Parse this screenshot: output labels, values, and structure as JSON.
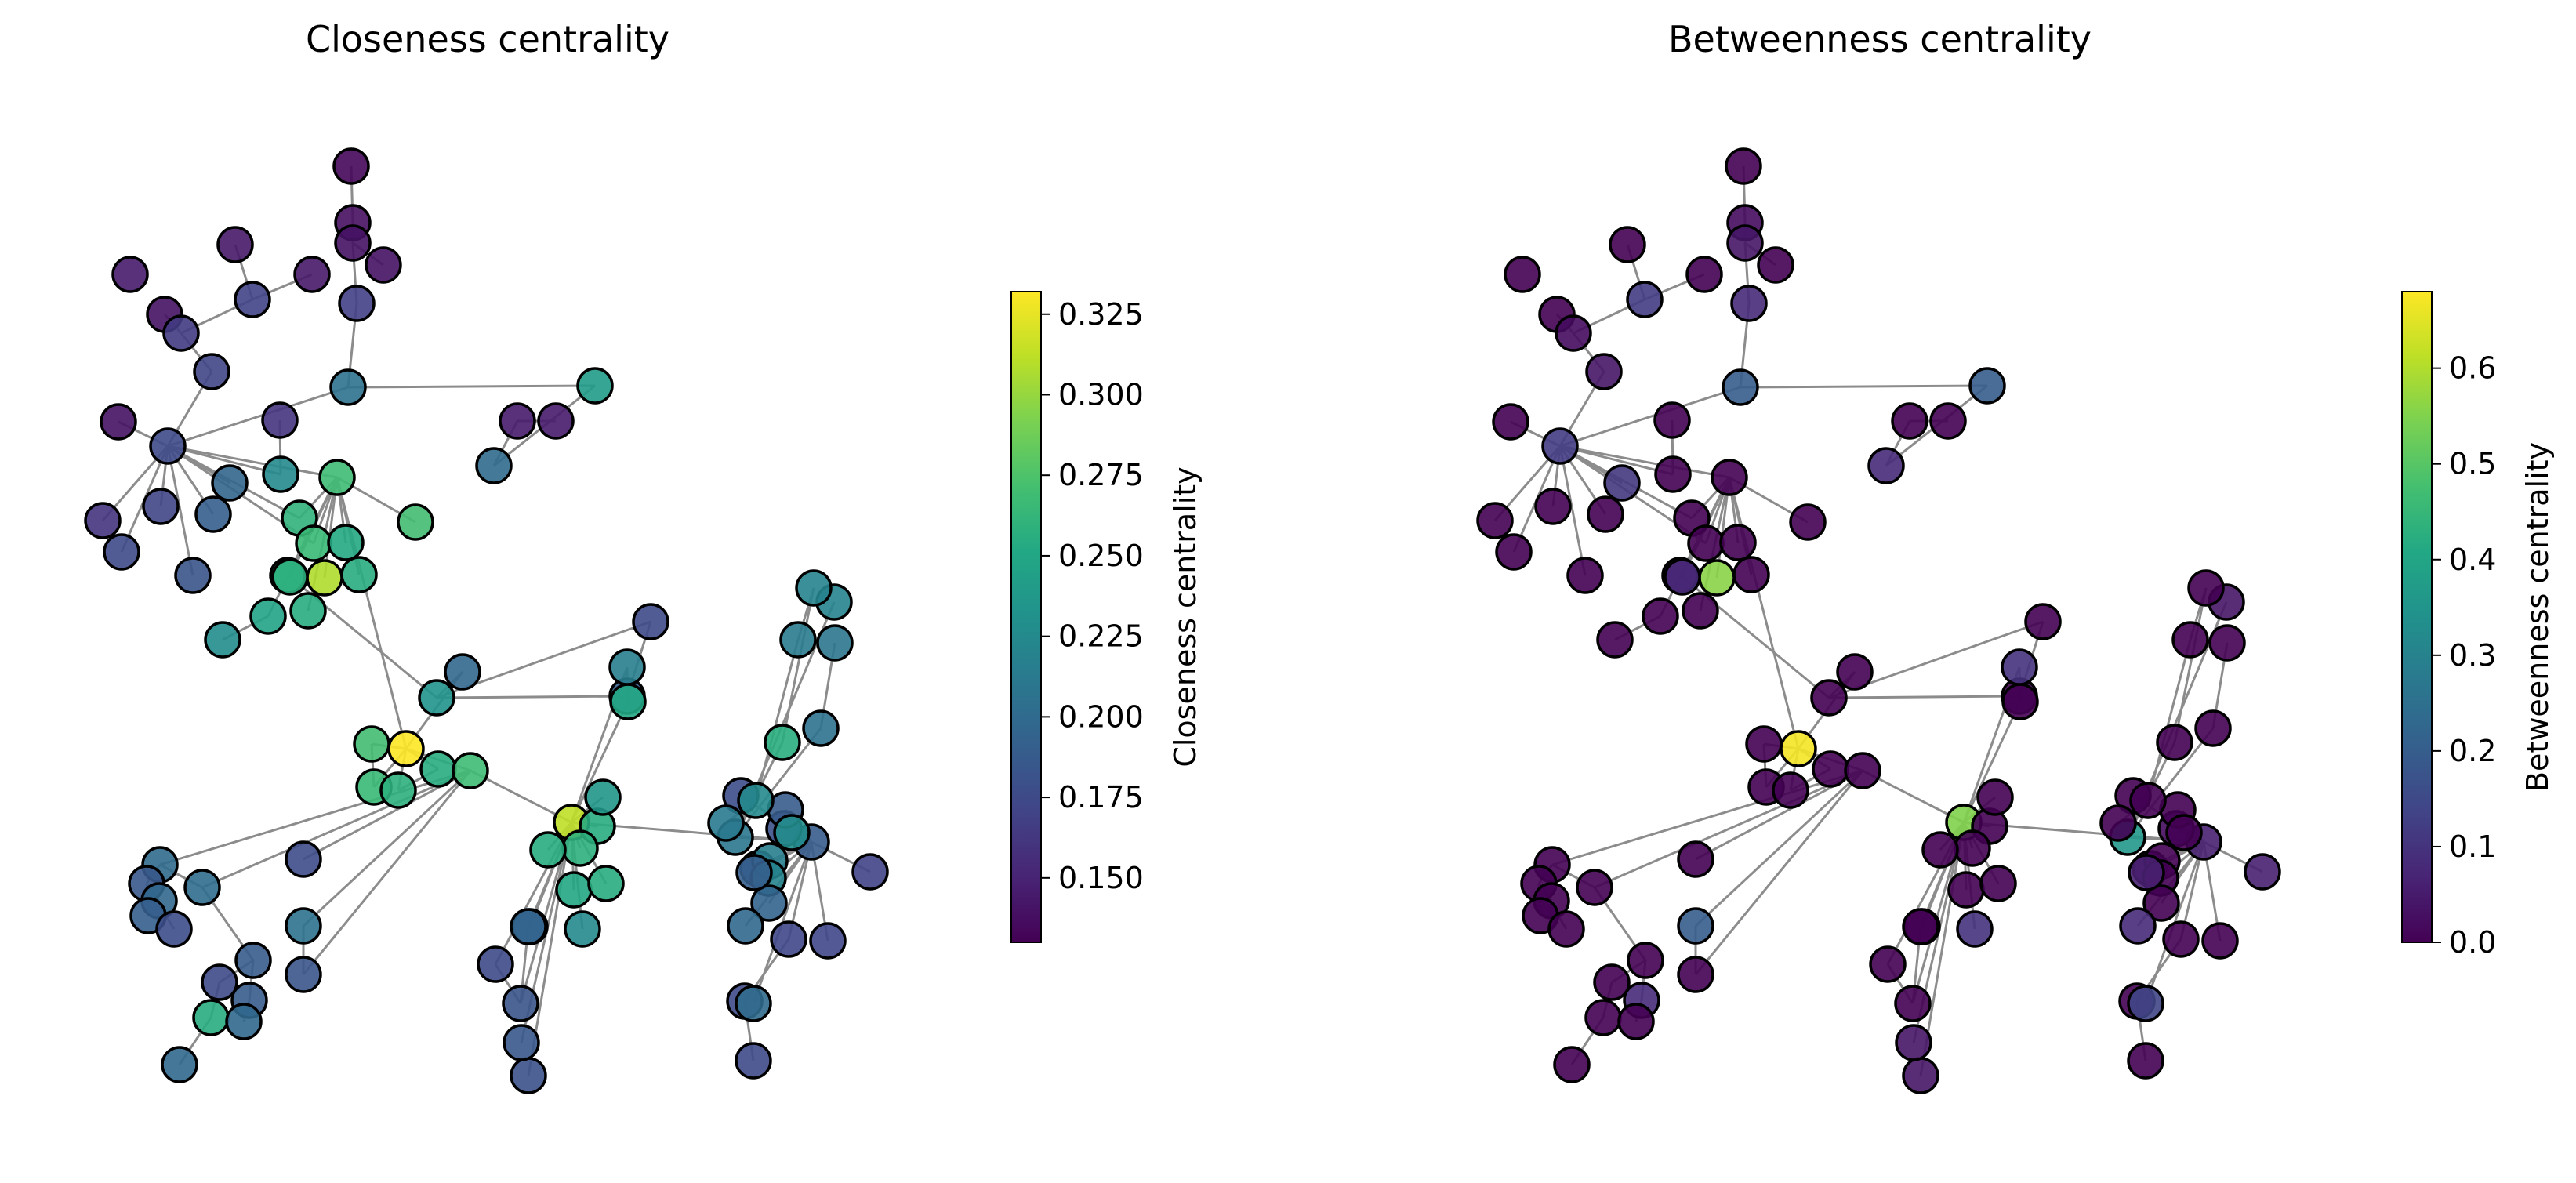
{
  "chart_data": [
    {
      "type": "network",
      "title": "Closeness centrality",
      "colorbar_label": "Closeness centrality",
      "colormap": "viridis",
      "vmin": 0.13,
      "vmax": 0.332,
      "ticks": [
        0.15,
        0.175,
        0.2,
        0.225,
        0.25,
        0.275,
        0.3,
        0.325
      ],
      "tick_labels": [
        "0.150",
        "0.175",
        "0.200",
        "0.225",
        "0.250",
        "0.275",
        "0.300",
        "0.325"
      ],
      "values": [
        0.133,
        0.138,
        0.14,
        0.14,
        0.168,
        0.143,
        0.145,
        0.17,
        0.143,
        0.14,
        0.165,
        0.172,
        0.205,
        0.14,
        0.175,
        0.16,
        0.2,
        0.145,
        0.145,
        0.24,
        0.172,
        0.19,
        0.16,
        0.175,
        0.182,
        0.196,
        0.225,
        0.268,
        0.26,
        0.265,
        0.252,
        0.308,
        0.255,
        0.27,
        0.247,
        0.255,
        0.25,
        0.228,
        0.258,
        0.197,
        0.232,
        0.19,
        0.175,
        0.332,
        0.27,
        0.265,
        0.258,
        0.255,
        0.268,
        0.2,
        0.202,
        0.185,
        0.197,
        0.19,
        0.178,
        0.176,
        0.205,
        0.183,
        0.188,
        0.175,
        0.188,
        0.255,
        0.198,
        0.198,
        0.18,
        0.185,
        0.175,
        0.182,
        0.18,
        0.312,
        0.255,
        0.258,
        0.255,
        0.25,
        0.255,
        0.235,
        0.25,
        0.215,
        0.225,
        0.196,
        0.188,
        0.18,
        0.188,
        0.178,
        0.185,
        0.21,
        0.173,
        0.175,
        0.175,
        0.256,
        0.205,
        0.22,
        0.22,
        0.208,
        0.213,
        0.225,
        0.212,
        0.228,
        0.215,
        0.22,
        0.195,
        0.19,
        0.198,
        0.2,
        0.173,
        0.17
      ]
    },
    {
      "type": "network",
      "title": "Betweenness centrality",
      "colorbar_label": "Betweenness centrality",
      "colormap": "viridis",
      "vmin": 0.0,
      "vmax": 0.68,
      "ticks": [
        0.0,
        0.1,
        0.2,
        0.3,
        0.4,
        0.5,
        0.6
      ],
      "tick_labels": [
        "0.0",
        "0.1",
        "0.2",
        "0.3",
        "0.4",
        "0.5",
        "0.6"
      ],
      "values": [
        0.0,
        0.02,
        0.04,
        0.0,
        0.08,
        0.0,
        0.0,
        0.12,
        0.0,
        0.0,
        0.02,
        0.04,
        0.2,
        0.0,
        0.12,
        0.0,
        0.08,
        0.0,
        0.0,
        0.2,
        0.0,
        0.0,
        0.0,
        0.0,
        0.0,
        0.11,
        0.0,
        0.0,
        0.0,
        0.0,
        0.0,
        0.56,
        0.0,
        0.0,
        0.0,
        0.0,
        0.0,
        0.0,
        0.08,
        0.0,
        0.0,
        0.0,
        0.0,
        0.67,
        0.0,
        0.0,
        0.0,
        0.0,
        0.0,
        0.0,
        0.0,
        0.0,
        0.0,
        0.0,
        0.0,
        0.0,
        0.2,
        0.0,
        0.0,
        0.0,
        0.08,
        0.0,
        0.0,
        0.0,
        0.04,
        0.04,
        0.0,
        0.0,
        0.0,
        0.55,
        0.0,
        0.0,
        0.0,
        0.0,
        0.0,
        0.0,
        0.0,
        0.1,
        0.1,
        0.0,
        0.06,
        0.02,
        0.0,
        0.0,
        0.0,
        0.36,
        0.0,
        0.0,
        0.0,
        0.0,
        0.0,
        0.04,
        0.0,
        0.0,
        0.0,
        0.0,
        0.0,
        0.0,
        0.0,
        0.0,
        0.0,
        0.06,
        0.08,
        0.14,
        0.0,
        0.06
      ]
    }
  ]
}
